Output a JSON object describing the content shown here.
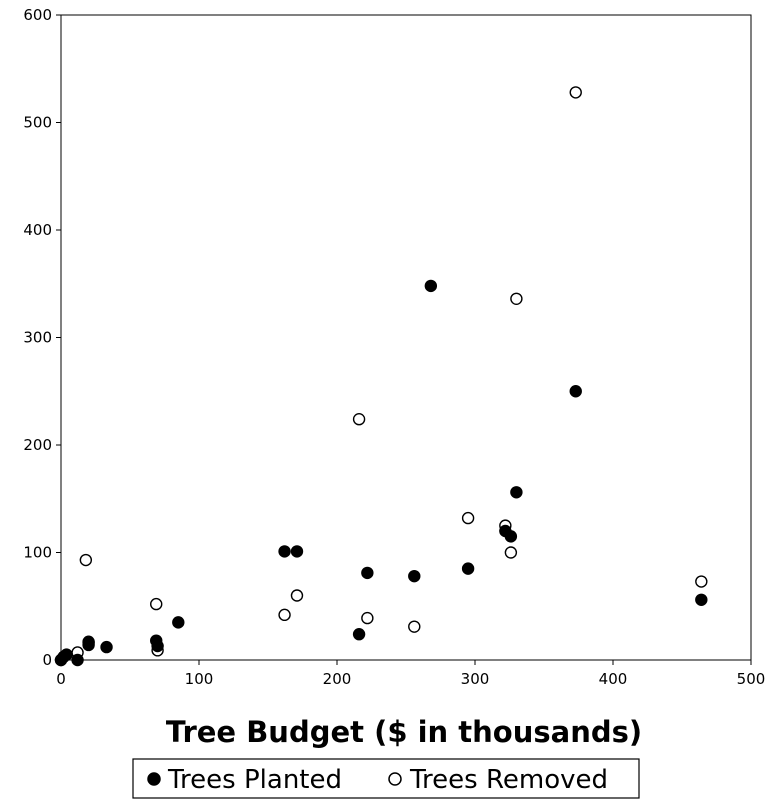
{
  "chart_data": {
    "type": "scatter",
    "title": "",
    "xlabel": "Tree Budget ($ in thousands)",
    "ylabel": "",
    "xlim": [
      0,
      500
    ],
    "ylim": [
      0,
      600
    ],
    "xticks": [
      0,
      100,
      200,
      300,
      400,
      500
    ],
    "yticks": [
      0,
      100,
      200,
      300,
      400,
      500,
      600
    ],
    "grid": false,
    "legend_position": "bottom",
    "series": [
      {
        "name": "Trees Planted",
        "marker": "filled-circle",
        "color": "#000000",
        "points": [
          [
            0,
            0
          ],
          [
            2,
            3
          ],
          [
            4,
            5
          ],
          [
            12,
            0
          ],
          [
            20,
            14
          ],
          [
            20,
            16
          ],
          [
            33,
            12
          ],
          [
            69,
            18
          ],
          [
            70,
            13
          ],
          [
            85,
            35
          ],
          [
            162,
            101
          ],
          [
            171,
            101
          ],
          [
            216,
            24
          ],
          [
            222,
            81
          ],
          [
            256,
            78
          ],
          [
            268,
            348
          ],
          [
            295,
            85
          ],
          [
            322,
            120
          ],
          [
            326,
            115
          ],
          [
            330,
            156
          ],
          [
            373,
            250
          ],
          [
            464,
            56
          ]
        ]
      },
      {
        "name": "Trees Removed",
        "marker": "open-circle",
        "color": "#000000",
        "points": [
          [
            0,
            0
          ],
          [
            2,
            3
          ],
          [
            12,
            7
          ],
          [
            18,
            93
          ],
          [
            20,
            17
          ],
          [
            69,
            52
          ],
          [
            70,
            9
          ],
          [
            162,
            42
          ],
          [
            171,
            60
          ],
          [
            216,
            224
          ],
          [
            222,
            39
          ],
          [
            256,
            31
          ],
          [
            295,
            132
          ],
          [
            322,
            125
          ],
          [
            326,
            100
          ],
          [
            330,
            336
          ],
          [
            373,
            528
          ],
          [
            464,
            73
          ]
        ]
      }
    ]
  }
}
